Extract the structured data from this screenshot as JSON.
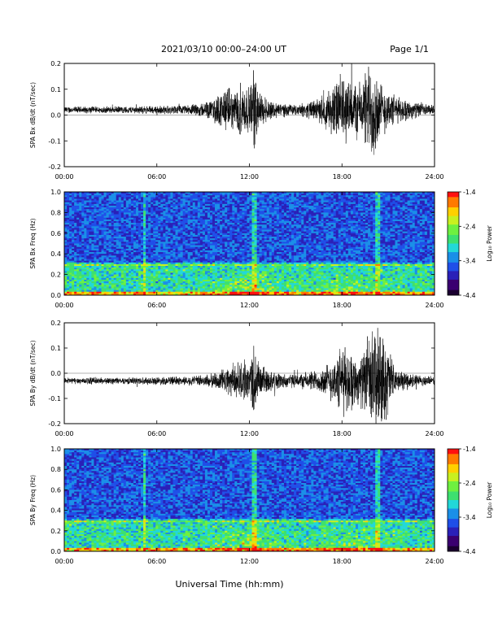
{
  "header": {
    "title": "2021/03/10  00:00–24:00 UT",
    "page": "Page 1/1"
  },
  "footer": {
    "xlabel": "Universal Time (hh:mm)"
  },
  "colors": {
    "colormap": [
      "#1a0030",
      "#3a0070",
      "#2a20b8",
      "#1f4fe8",
      "#1a8fe8",
      "#22d8d8",
      "#3de070",
      "#6ef040",
      "#c8f020",
      "#ffd000",
      "#ff7a00",
      "#ff1010"
    ],
    "trace": "#000000"
  },
  "chart_data": [
    {
      "type": "line",
      "ylabel": "SPA Bx dB/dt (nT/sec)",
      "xlim": [
        0,
        24
      ],
      "ylim": [
        -0.2,
        0.2
      ],
      "xticks": [
        "00:00",
        "06:00",
        "12:00",
        "18:00",
        "24:00"
      ],
      "yticks": [
        "-0.2",
        "-0.1",
        "0.0",
        "0.1",
        "0.2"
      ],
      "baseline": 0.02,
      "envelope": {
        "hours": [
          0,
          4,
          8,
          9.5,
          10.5,
          11,
          11.5,
          12,
          12.3,
          12.6,
          13.5,
          15,
          16.5,
          17.5,
          18,
          18.5,
          19.2,
          20,
          20.5,
          21.5,
          23,
          24
        ],
        "amplitude": [
          0.015,
          0.015,
          0.02,
          0.04,
          0.1,
          0.08,
          0.13,
          0.09,
          0.2,
          0.08,
          0.04,
          0.02,
          0.05,
          0.12,
          0.16,
          0.14,
          0.12,
          0.25,
          0.12,
          0.06,
          0.03,
          0.02
        ]
      }
    },
    {
      "type": "heatmap",
      "ylabel": "SPA Bx Freq (Hz)",
      "colorbar_label": "Log₁₀ Power",
      "colorbar_ticks": [
        "-1.4",
        "-2.4",
        "-3.4",
        "-4.4"
      ],
      "xlim": [
        0,
        24
      ],
      "ylim": [
        0,
        1
      ],
      "xticks": [
        "00:00",
        "06:00",
        "12:00",
        "18:00",
        "24:00"
      ],
      "yticks": [
        "0.0",
        "0.2",
        "0.4",
        "0.6",
        "0.8",
        "1.0"
      ],
      "hot_band_hz": 0.3,
      "event_hours": [
        5.2,
        12.3,
        20.3
      ]
    },
    {
      "type": "line",
      "ylabel": "SPA By dB/dt (nT/sec)",
      "xlim": [
        0,
        24
      ],
      "ylim": [
        -0.2,
        0.2
      ],
      "xticks": [
        "00:00",
        "06:00",
        "12:00",
        "18:00",
        "24:00"
      ],
      "yticks": [
        "-0.2",
        "-0.1",
        "0.0",
        "0.1",
        "0.2"
      ],
      "baseline": -0.03,
      "envelope": {
        "hours": [
          0,
          4,
          8,
          9.5,
          10.5,
          11.5,
          12,
          12.3,
          12.6,
          13.5,
          15,
          16.5,
          17.5,
          18,
          18.5,
          19,
          19.5,
          20,
          20.3,
          21,
          21.5,
          23,
          24
        ],
        "amplitude": [
          0.015,
          0.015,
          0.02,
          0.03,
          0.06,
          0.09,
          0.08,
          0.2,
          0.08,
          0.04,
          0.03,
          0.05,
          0.1,
          0.16,
          0.14,
          0.1,
          0.14,
          0.24,
          0.24,
          0.16,
          0.05,
          0.025,
          0.02
        ]
      }
    },
    {
      "type": "heatmap",
      "ylabel": "SPA By Freq (Hz)",
      "colorbar_label": "Log₁₀ Power",
      "colorbar_ticks": [
        "-1.4",
        "-2.4",
        "-3.4",
        "-4.4"
      ],
      "xlim": [
        0,
        24
      ],
      "ylim": [
        0,
        1
      ],
      "xticks": [
        "00:00",
        "06:00",
        "12:00",
        "18:00",
        "24:00"
      ],
      "yticks": [
        "0.0",
        "0.2",
        "0.4",
        "0.6",
        "0.8",
        "1.0"
      ],
      "hot_band_hz": 0.3,
      "event_hours": [
        5.2,
        12.3,
        20.3
      ]
    }
  ]
}
